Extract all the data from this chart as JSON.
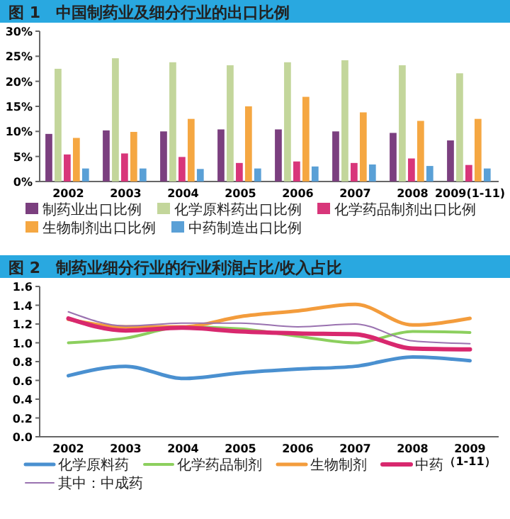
{
  "chart_data": [
    {
      "type": "bar",
      "title": "图 1　中国制药业及细分行业的出口比例",
      "categories": [
        "2002",
        "2003",
        "2004",
        "2005",
        "2006",
        "2007",
        "2008",
        "2009(1-11)"
      ],
      "ylim": [
        0,
        30
      ],
      "yticks": [
        {
          "value": 0,
          "label": "0%"
        },
        {
          "value": 5,
          "label": "5%"
        },
        {
          "value": 10,
          "label": "10%"
        },
        {
          "value": 15,
          "label": "15%"
        },
        {
          "value": 20,
          "label": "20%"
        },
        {
          "value": 25,
          "label": "25%"
        },
        {
          "value": 30,
          "label": "30%"
        }
      ],
      "legend": "bottom",
      "series": [
        {
          "name": "制药业出口比例",
          "color": "#7b3f7f",
          "values": [
            9.5,
            10.2,
            10,
            10.4,
            10.4,
            10,
            9.7,
            8.2
          ]
        },
        {
          "name": "化学原料药出口比例",
          "color": "#c3d69b",
          "values": [
            22.5,
            24.6,
            23.8,
            23.2,
            23.8,
            24.2,
            23.2,
            21.6
          ]
        },
        {
          "name": "化学药品制剂出口比例",
          "color": "#d8367a",
          "values": [
            5.4,
            5.6,
            4.9,
            3.7,
            4.0,
            3.7,
            4.6,
            3.3
          ]
        },
        {
          "name": "生物制剂出口比例",
          "color": "#f5a742",
          "values": [
            8.7,
            9.9,
            12.5,
            15.0,
            16.9,
            13.8,
            12.1,
            12.5
          ]
        },
        {
          "name": "中药制造出口比例",
          "color": "#5aa0d6",
          "values": [
            2.6,
            2.6,
            2.5,
            2.6,
            3.0,
            3.4,
            3.1,
            2.6
          ]
        }
      ]
    },
    {
      "type": "line",
      "title": "图 2　制药业细分行业的行业利润占比/收入占比",
      "categories": [
        "2002",
        "2003",
        "2004",
        "2005",
        "2006",
        "2007",
        "2008",
        "2009（1-11）"
      ],
      "ylim": [
        0,
        1.6
      ],
      "yticks": [
        {
          "value": 0,
          "label": "0.0"
        },
        {
          "value": 0.2,
          "label": "0.2"
        },
        {
          "value": 0.4,
          "label": "0.4"
        },
        {
          "value": 0.6,
          "label": "0.6"
        },
        {
          "value": 0.8,
          "label": "0.8"
        },
        {
          "value": 1.0,
          "label": "1.0"
        },
        {
          "value": 1.2,
          "label": "1.2"
        },
        {
          "value": 1.4,
          "label": "1.4"
        },
        {
          "value": 1.6,
          "label": "1.6"
        }
      ],
      "legend": "bottom",
      "series": [
        {
          "name": "化学原料药",
          "color": "#4a90d0",
          "values": [
            0.65,
            0.75,
            0.62,
            0.68,
            0.72,
            0.75,
            0.85,
            0.81
          ]
        },
        {
          "name": "化学药品制剂",
          "color": "#8ccf5e",
          "values": [
            1.0,
            1.05,
            1.17,
            1.15,
            1.07,
            1.0,
            1.12,
            1.11
          ]
        },
        {
          "name": "生物制剂",
          "color": "#f39c3c",
          "values": [
            1.25,
            1.17,
            1.17,
            1.28,
            1.34,
            1.41,
            1.19,
            1.26
          ]
        },
        {
          "name": "中药",
          "color": "#d8286e",
          "values": [
            1.26,
            1.13,
            1.16,
            1.12,
            1.1,
            1.09,
            0.94,
            0.93
          ]
        },
        {
          "name": "其中：中成药",
          "color": "#9a72b0",
          "values": [
            1.33,
            1.18,
            1.21,
            1.21,
            1.17,
            1.2,
            1.02,
            0.99
          ]
        }
      ]
    }
  ]
}
